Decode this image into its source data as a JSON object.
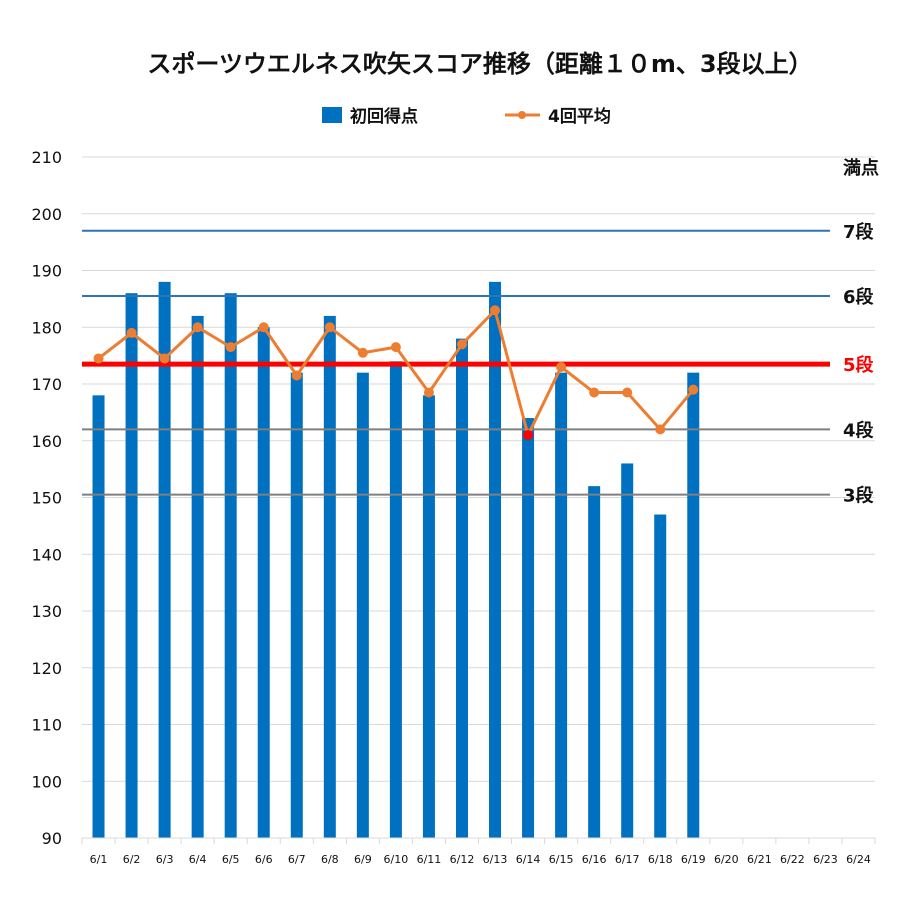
{
  "chart_data": {
    "type": "bar+line",
    "title": "スポーツウエルネス吹矢スコア推移（距離１０m、3段以上）",
    "categories": [
      "6/1",
      "6/2",
      "6/3",
      "6/4",
      "6/5",
      "6/6",
      "6/7",
      "6/8",
      "6/9",
      "6/10",
      "6/11",
      "6/12",
      "6/13",
      "6/14",
      "6/15",
      "6/16",
      "6/17",
      "6/18",
      "6/19",
      "6/20",
      "6/21",
      "6/22",
      "6/23",
      "6/24"
    ],
    "series": [
      {
        "name": "初回得点",
        "type": "bar",
        "color": "#0070c0",
        "values": [
          168,
          186,
          188,
          182,
          186,
          180,
          172,
          182,
          172,
          174,
          168,
          178,
          188,
          164,
          172,
          152,
          156,
          147,
          172,
          null,
          null,
          null,
          null,
          null
        ]
      },
      {
        "name": "4回平均",
        "type": "line",
        "color": "#ed7d31",
        "values": [
          174.5,
          179,
          174.5,
          180,
          176.5,
          180,
          171.5,
          180,
          175.5,
          176.5,
          168.5,
          177,
          183,
          161,
          173,
          168.5,
          168.5,
          162,
          169,
          null,
          null,
          null,
          null,
          null
        ]
      }
    ],
    "ylim": [
      90,
      210
    ],
    "yticks": [
      90,
      100,
      110,
      120,
      130,
      140,
      150,
      160,
      170,
      180,
      190,
      200,
      210
    ],
    "grid": "horizontal",
    "legend_position": "top",
    "reference_lines": [
      {
        "label": "満点",
        "value": 210,
        "color": "#d9d9d9",
        "label_color": "#111111",
        "width": 1
      },
      {
        "label": "7段",
        "value": 197,
        "color": "#2e75b6",
        "label_color": "#111111",
        "width": 2
      },
      {
        "label": "6段",
        "value": 185.5,
        "color": "#2e75b6",
        "label_color": "#111111",
        "width": 2
      },
      {
        "label": "5段",
        "value": 173.5,
        "color": "#ff0000",
        "label_color": "#ff0000",
        "width": 5
      },
      {
        "label": "4段",
        "value": 162,
        "color": "#7f7f7f",
        "label_color": "#111111",
        "width": 2
      },
      {
        "label": "3段",
        "value": 150.5,
        "color": "#7f7f7f",
        "label_color": "#111111",
        "width": 2
      }
    ],
    "highlight_point": {
      "index": 13,
      "color": "#ff0000"
    }
  }
}
